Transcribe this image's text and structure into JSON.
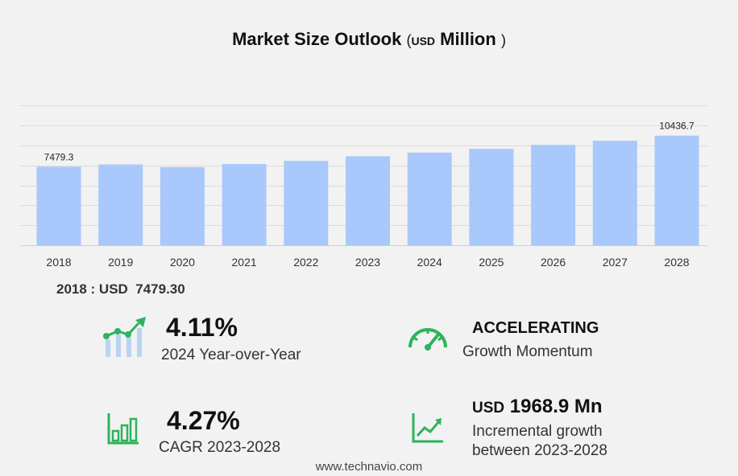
{
  "title": {
    "main": "Market Size Outlook",
    "open": "(",
    "unit_currency": "USD",
    "unit_scale": "Million",
    "close": ")"
  },
  "chart_data": {
    "type": "bar",
    "categories": [
      "2018",
      "2019",
      "2020",
      "2021",
      "2022",
      "2023",
      "2024",
      "2025",
      "2026",
      "2027",
      "2028"
    ],
    "values": [
      7479.3,
      7690,
      7440,
      7730,
      8030,
      8470,
      8820,
      9180,
      9560,
      9950,
      10436.7
    ],
    "labels": [
      "7479.3",
      "",
      "",
      "",
      "",
      "",
      "",
      "",
      "",
      "",
      "10436.7"
    ],
    "ylim": [
      0,
      13400
    ],
    "grid": true,
    "bar_color": "#a9c8fb"
  },
  "base_year": {
    "text": "2018 : USD  7479.30"
  },
  "stats": {
    "yoy": {
      "value": "4.11%",
      "label": "2024 Year-over-Year",
      "icon": "growth-chart-icon"
    },
    "momentum": {
      "value": "ACCELERATING",
      "label": "Growth Momentum",
      "icon": "speedometer-icon"
    },
    "cagr": {
      "value": "4.27%",
      "label": "CAGR 2023-2028",
      "icon": "bar-chart-icon"
    },
    "incremental": {
      "currency": "USD",
      "value": "1968.9 Mn",
      "label1": "Incremental growth",
      "label2": "between 2023-2028",
      "icon": "trend-up-icon"
    }
  },
  "colors": {
    "accent_green": "#2db35d",
    "bar": "#a9c8fb"
  },
  "footer": {
    "source": "www.technavio.com"
  }
}
